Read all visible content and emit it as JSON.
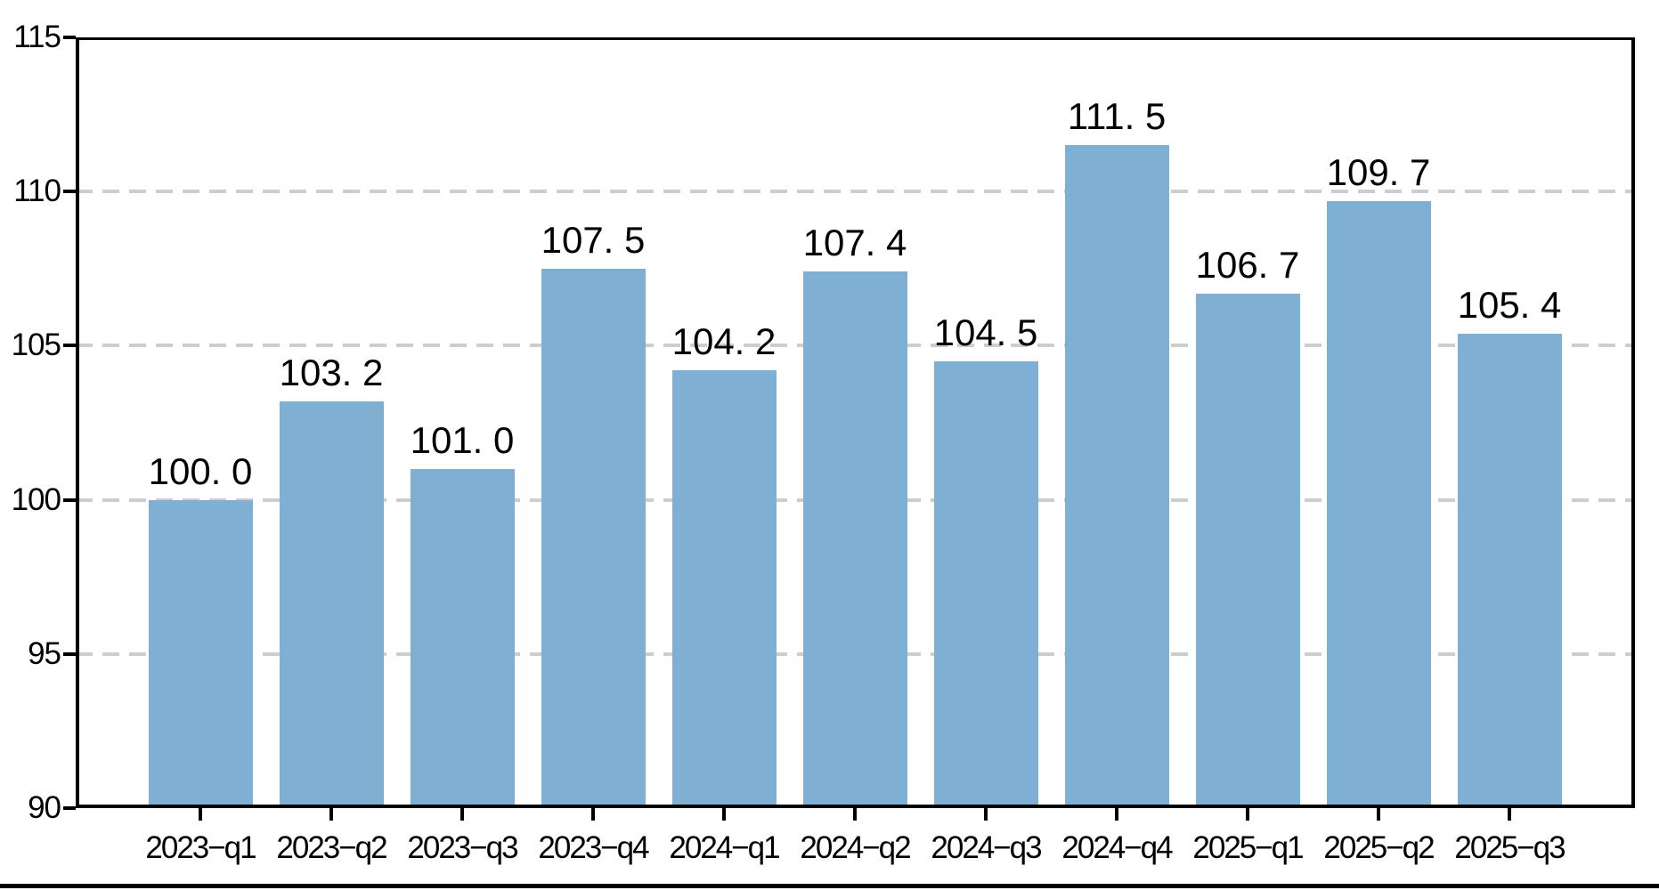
{
  "chart_data": {
    "type": "bar",
    "title": "",
    "xlabel": "",
    "ylabel": "",
    "categories": [
      "2023−q1",
      "2023−q2",
      "2023−q3",
      "2023−q4",
      "2024−q1",
      "2024−q2",
      "2024−q3",
      "2024−q4",
      "2025−q1",
      "2025−q2",
      "2025−q3"
    ],
    "values": [
      100.0,
      103.2,
      101.0,
      107.5,
      104.2,
      107.4,
      104.5,
      111.5,
      106.7,
      109.7,
      105.4
    ],
    "value_labels": [
      "100. 0",
      "103. 2",
      "101. 0",
      "107. 5",
      "104. 2",
      "107. 4",
      "104. 5",
      "111. 5",
      "106. 7",
      "109. 7",
      "105. 4"
    ],
    "ylim": [
      90,
      115
    ],
    "yticks": [
      90,
      95,
      100,
      105,
      110,
      115
    ],
    "ytick_labels": [
      "90",
      "95",
      "100",
      "105",
      "110",
      "115"
    ],
    "gridline_values": [
      95,
      100,
      105,
      110
    ],
    "grid": "horizontal-dashed",
    "legend": "none",
    "colors": {
      "bar_fill": "#7FAFD2",
      "gridline": "#CDCDCD",
      "axis": "#000000",
      "text": "#000000",
      "background": "#FFFFFF",
      "bottom_rule": "#000000"
    }
  }
}
